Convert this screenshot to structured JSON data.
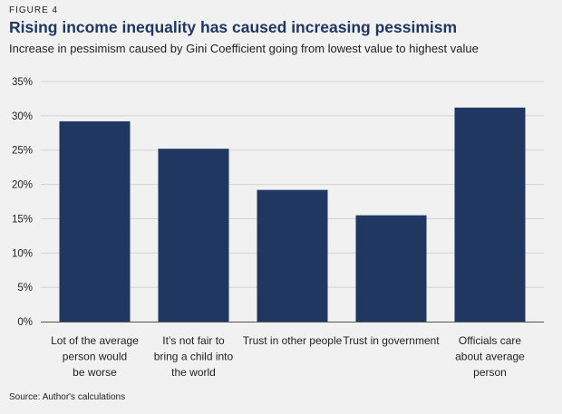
{
  "figure_label": "FIGURE 4",
  "source": "Source: Author's calculations",
  "colors": {
    "bar": "#1f3761",
    "grid": "#d3d3d3",
    "axis": "#555555",
    "background": "#f1f1f1"
  },
  "chart_data": {
    "type": "bar",
    "title": "Rising income inequality has caused increasing pessimism",
    "subtitle": "Increase in pessimism caused by Gini Coefficient going from lowest value to highest value",
    "xlabel": "",
    "ylabel": "",
    "ylim": [
      0,
      35
    ],
    "yticks": [
      "0%",
      "5%",
      "10%",
      "15%",
      "20%",
      "25%",
      "30%",
      "35%"
    ],
    "ytick_values": [
      0,
      5,
      10,
      15,
      20,
      25,
      30,
      35
    ],
    "grid": true,
    "categories": [
      [
        "Lot of the average",
        "person would",
        "be worse"
      ],
      [
        "It’s not fair to",
        "bring a child into",
        "the world"
      ],
      [
        "Trust in other people"
      ],
      [
        "Trust in government"
      ],
      [
        "Officials care",
        "about average",
        "person"
      ]
    ],
    "values": [
      29.2,
      25.2,
      19.2,
      15.5,
      31.2
    ]
  }
}
